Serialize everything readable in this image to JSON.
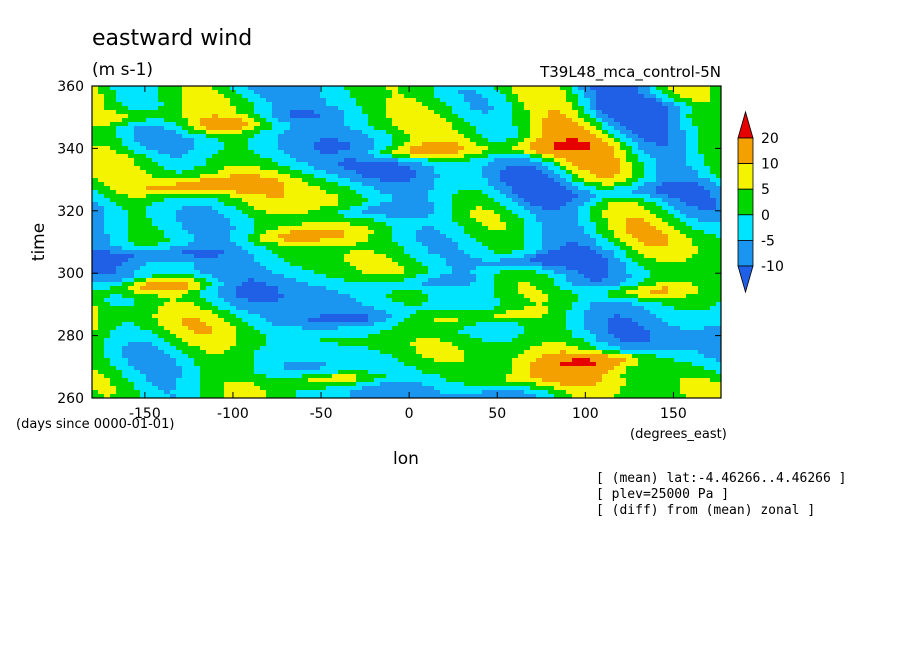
{
  "chart_data": {
    "type": "heatmap",
    "title": "eastward wind",
    "units_label": "(m s-1)",
    "dataset_label": "T39L48_mca_control-5N",
    "xlabel": "lon",
    "ylabel": "time",
    "x_units": "(degrees_east)",
    "y_units": "(days since 0000-01-01)",
    "xlim": [
      -180,
      177
    ],
    "ylim": [
      260,
      360
    ],
    "x_ticks": [
      -150,
      -100,
      -50,
      0,
      50,
      100,
      150
    ],
    "x_tick_labels": [
      "-150",
      "-100",
      "-50",
      "0",
      "50",
      "100",
      "150"
    ],
    "y_ticks": [
      260,
      280,
      300,
      320,
      340,
      360
    ],
    "y_tick_labels": [
      "260",
      "280",
      "300",
      "320",
      "340",
      "360"
    ],
    "colorbar": {
      "levels": [
        -10,
        -5,
        0,
        5,
        10,
        20
      ],
      "level_labels": [
        "-10",
        "-5",
        "0",
        "5",
        "10",
        "20"
      ],
      "colors": [
        "#1f60e6",
        "#1a96f0",
        "#00e5ff",
        "#00d600",
        "#f4f400",
        "#f4a000",
        "#e60000"
      ]
    },
    "grid": false,
    "legend": "right",
    "features": [
      {
        "name": "positive",
        "lon": -140,
        "time": 296,
        "value": 18
      },
      {
        "name": "positive",
        "lon": -40,
        "time": 266,
        "value": 17
      },
      {
        "name": "positive",
        "lon": 0,
        "time": 339,
        "value": 16
      },
      {
        "name": "positive",
        "lon": 130,
        "time": 294,
        "value": 14
      },
      {
        "name": "positive",
        "lon": 40,
        "time": 286,
        "value": 12
      },
      {
        "name": "positive",
        "lon": -60,
        "time": 312,
        "value": 12
      },
      {
        "name": "positive",
        "lon": -100,
        "time": 348,
        "value": 15
      },
      {
        "name": "positive",
        "lon": -120,
        "time": 328,
        "value": 15
      },
      {
        "name": "positive",
        "lon": 110,
        "time": 272,
        "value": 15
      },
      {
        "name": "positive",
        "lon": 70,
        "time": 340,
        "value": 12
      },
      {
        "name": "positive",
        "lon": -160,
        "time": 350,
        "value": 10
      },
      {
        "name": "positive",
        "lon": 60,
        "time": 266,
        "value": 8
      },
      {
        "name": "negative",
        "lon": -140,
        "time": 306,
        "value": -11
      },
      {
        "name": "negative",
        "lon": 120,
        "time": 326,
        "value": -11
      },
      {
        "name": "negative",
        "lon": -20,
        "time": 320,
        "value": -10
      },
      {
        "name": "negative",
        "lon": 70,
        "time": 304,
        "value": -11
      },
      {
        "name": "negative",
        "lon": -40,
        "time": 285,
        "value": -10
      },
      {
        "name": "negative",
        "lon": -70,
        "time": 350,
        "value": -10
      },
      {
        "name": "negative",
        "lon": 10,
        "time": 297,
        "value": -9
      },
      {
        "name": "negative",
        "lon": 140,
        "time": 353,
        "value": -9
      }
    ]
  },
  "notes": [
    "[ (mean) lat:-4.46266..4.46266 ]",
    "[ plev=25000 Pa ]",
    "[ (diff) from (mean) zonal ]"
  ]
}
